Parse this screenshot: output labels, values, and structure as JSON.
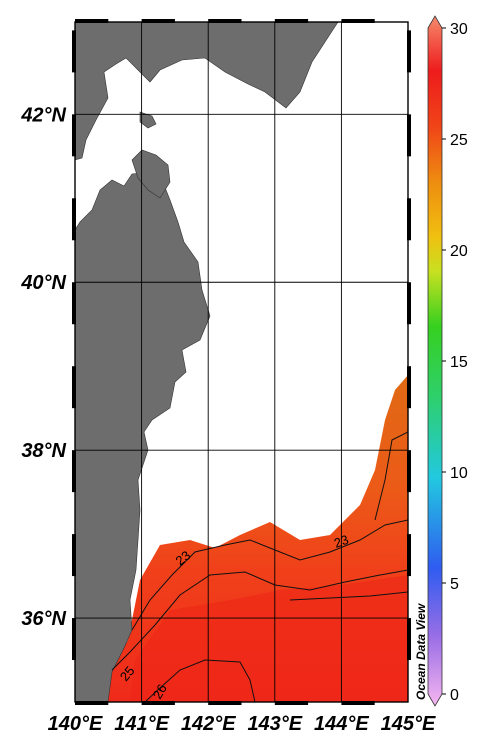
{
  "map": {
    "lat_range": [
      35,
      43.1
    ],
    "lon_range": [
      140,
      145
    ],
    "lat_ticks": [
      {
        "value": 42,
        "label": "42°N"
      },
      {
        "value": 40,
        "label": "40°N"
      },
      {
        "value": 38,
        "label": "38°N"
      },
      {
        "value": 36,
        "label": "36°N"
      }
    ],
    "lon_ticks": [
      {
        "value": 140,
        "label": "140°E"
      },
      {
        "value": 141,
        "label": "141°E"
      },
      {
        "value": 142,
        "label": "142°E"
      },
      {
        "value": 143,
        "label": "143°E"
      },
      {
        "value": 144,
        "label": "144°E"
      },
      {
        "value": 145,
        "label": "145°E"
      }
    ],
    "land_color": "#6d6d6d",
    "ocean_color": "#ffffff",
    "watermark": "Ocean Data View",
    "contours": [
      {
        "value": 23,
        "label": "23"
      },
      {
        "value": 25,
        "label": "25"
      },
      {
        "value": 26,
        "label": "26"
      }
    ]
  },
  "colorbar": {
    "min": 0,
    "max": 30,
    "tick_labels": [
      "30",
      "25",
      "20",
      "15",
      "10",
      "5",
      "0"
    ],
    "colors": [
      "#f6b6f0",
      "#9a6ee6",
      "#2f5cf0",
      "#22c8e0",
      "#2ed06a",
      "#36d020",
      "#c8e020",
      "#f0c010",
      "#ee8c10",
      "#f04418",
      "#ee1c1c",
      "#f68a6c"
    ]
  }
}
